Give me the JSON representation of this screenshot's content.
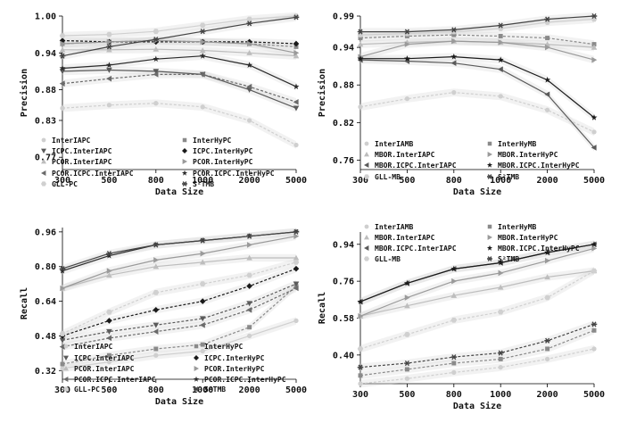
{
  "chart_data": [
    {
      "type": "line",
      "xlabel": "Data Size",
      "ylabel": "Precision",
      "x": [
        "300",
        "500",
        "800",
        "1000",
        "2000",
        "5000"
      ],
      "yticks": [
        "0.77",
        "0.83",
        "0.88",
        "0.94",
        "1.00"
      ],
      "ylim": [
        0.75,
        1.0
      ],
      "series": [
        {
          "name": "InterIAPC",
          "marker": "circle",
          "color": "#cfcfcf",
          "dash": "3,2",
          "values": [
            0.85,
            0.855,
            0.858,
            0.852,
            0.83,
            0.79
          ]
        },
        {
          "name": "InterHyPC",
          "marker": "square",
          "color": "#8a8a8a",
          "dash": "3,2",
          "values": [
            0.955,
            0.958,
            0.96,
            0.958,
            0.955,
            0.95
          ]
        },
        {
          "name": "ICPC.InterIAPC",
          "marker": "tri-down",
          "color": "#5a5a5a",
          "dash": "",
          "values": [
            0.91,
            0.912,
            0.91,
            0.905,
            0.88,
            0.85
          ]
        },
        {
          "name": "ICPC.InterHyPC",
          "marker": "diamond",
          "color": "#1a1a1a",
          "dash": "3,2",
          "values": [
            0.96,
            0.958,
            0.958,
            0.958,
            0.958,
            0.955
          ]
        },
        {
          "name": "PCOR.InterIAPC",
          "marker": "tri-up",
          "color": "#bdbdbd",
          "dash": "",
          "values": [
            0.945,
            0.945,
            0.946,
            0.944,
            0.94,
            0.935
          ]
        },
        {
          "name": "PCOR.InterHyPC",
          "marker": "tri-right",
          "color": "#9a9a9a",
          "dash": "",
          "values": [
            0.955,
            0.958,
            0.96,
            0.958,
            0.955,
            0.94
          ]
        },
        {
          "name": "PCOR.ICPC.InterIAPC",
          "marker": "tri-left",
          "color": "#6a6a6a",
          "dash": "3,2",
          "values": [
            0.89,
            0.898,
            0.905,
            0.905,
            0.885,
            0.86
          ]
        },
        {
          "name": "PCOR.ICPC.InterHyPC",
          "marker": "star",
          "color": "#2a2a2a",
          "dash": "",
          "values": [
            0.915,
            0.92,
            0.93,
            0.935,
            0.92,
            0.885
          ]
        },
        {
          "name": "GLL-PC",
          "marker": "hexagon",
          "color": "#d0d0d0",
          "dash": "",
          "values": [
            0.968,
            0.97,
            0.975,
            0.985,
            0.995,
            1.0
          ]
        },
        {
          "name": "S²TMB",
          "marker": "asterisk",
          "color": "#444444",
          "dash": "",
          "values": [
            0.935,
            0.95,
            0.962,
            0.975,
            0.988,
            0.998
          ]
        }
      ]
    },
    {
      "type": "line",
      "xlabel": "Data Size",
      "ylabel": "Precision",
      "x": [
        "300",
        "500",
        "800",
        "1000",
        "2000",
        "5000"
      ],
      "yticks": [
        "0.76",
        "0.82",
        "0.88",
        "0.94",
        "0.99"
      ],
      "ylim": [
        0.745,
        0.99
      ],
      "series": [
        {
          "name": "InterIAMB",
          "marker": "circle",
          "color": "#cfcfcf",
          "dash": "3,2",
          "values": [
            0.845,
            0.858,
            0.868,
            0.862,
            0.84,
            0.805
          ]
        },
        {
          "name": "InterHyMB",
          "marker": "square",
          "color": "#8a8a8a",
          "dash": "3,2",
          "values": [
            0.955,
            0.958,
            0.96,
            0.958,
            0.955,
            0.945
          ]
        },
        {
          "name": "MBOR.InterIAPC",
          "marker": "tri-up",
          "color": "#bdbdbd",
          "dash": "",
          "values": [
            0.945,
            0.948,
            0.95,
            0.948,
            0.945,
            0.94
          ]
        },
        {
          "name": "MBOR.InterHyPC",
          "marker": "tri-right",
          "color": "#9a9a9a",
          "dash": "",
          "values": [
            0.925,
            0.945,
            0.95,
            0.948,
            0.94,
            0.92
          ]
        },
        {
          "name": "MBOR.ICPC.InterIAPC",
          "marker": "tri-left",
          "color": "#5a5a5a",
          "dash": "",
          "values": [
            0.92,
            0.918,
            0.915,
            0.905,
            0.865,
            0.78
          ]
        },
        {
          "name": "MBOR.ICPC.InterHyPC",
          "marker": "star",
          "color": "#1a1a1a",
          "dash": "",
          "values": [
            0.922,
            0.922,
            0.925,
            0.92,
            0.888,
            0.828
          ]
        },
        {
          "name": "GLL-MB",
          "marker": "hexagon",
          "color": "#d0d0d0",
          "dash": "",
          "values": [
            0.96,
            0.962,
            0.965,
            0.97,
            0.98,
            0.985
          ]
        },
        {
          "name": "S²TMB",
          "marker": "asterisk",
          "color": "#444444",
          "dash": "",
          "values": [
            0.965,
            0.965,
            0.968,
            0.975,
            0.985,
            0.99
          ]
        }
      ]
    },
    {
      "type": "line",
      "xlabel": "Data Size",
      "ylabel": "Recall",
      "x": [
        "300",
        "500",
        "800",
        "1000",
        "2000",
        "5000"
      ],
      "yticks": [
        "0.32",
        "0.48",
        "0.64",
        "0.80",
        "0.96"
      ],
      "ylim": [
        0.28,
        0.98
      ],
      "series": [
        {
          "name": "InterIAPC",
          "marker": "circle",
          "color": "#cfcfcf",
          "dash": "",
          "values": [
            0.33,
            0.36,
            0.39,
            0.41,
            0.48,
            0.55
          ]
        },
        {
          "name": "InterHyPC",
          "marker": "square",
          "color": "#8a8a8a",
          "dash": "3,2",
          "values": [
            0.35,
            0.39,
            0.42,
            0.44,
            0.52,
            0.71
          ]
        },
        {
          "name": "ICPC.InterIAPC",
          "marker": "tri-down",
          "color": "#5a5a5a",
          "dash": "3,2",
          "values": [
            0.46,
            0.5,
            0.53,
            0.56,
            0.63,
            0.72
          ]
        },
        {
          "name": "ICPC.InterHyPC",
          "marker": "diamond",
          "color": "#1a1a1a",
          "dash": "3,2",
          "values": [
            0.48,
            0.55,
            0.6,
            0.64,
            0.71,
            0.79
          ]
        },
        {
          "name": "PCOR.InterIAPC",
          "marker": "tri-up",
          "color": "#bdbdbd",
          "dash": "",
          "values": [
            0.7,
            0.76,
            0.8,
            0.82,
            0.84,
            0.84
          ]
        },
        {
          "name": "PCOR.InterHyPC",
          "marker": "tri-right",
          "color": "#9a9a9a",
          "dash": "",
          "values": [
            0.7,
            0.78,
            0.83,
            0.86,
            0.9,
            0.94
          ]
        },
        {
          "name": "PCOR.ICPC.InterIAPC",
          "marker": "tri-left",
          "color": "#6a6a6a",
          "dash": "3,2",
          "values": [
            0.43,
            0.47,
            0.5,
            0.53,
            0.6,
            0.7
          ]
        },
        {
          "name": "PCOR.ICPC.InterHyPC",
          "marker": "star",
          "color": "#2a2a2a",
          "dash": "",
          "values": [
            0.78,
            0.85,
            0.9,
            0.92,
            0.94,
            0.96
          ]
        },
        {
          "name": "GLL-PC",
          "marker": "hexagon",
          "color": "#d0d0d0",
          "dash": "3,2",
          "values": [
            0.49,
            0.59,
            0.68,
            0.72,
            0.76,
            0.82
          ]
        },
        {
          "name": "S²TMB",
          "marker": "asterisk",
          "color": "#444444",
          "dash": "",
          "values": [
            0.79,
            0.86,
            0.9,
            0.92,
            0.94,
            0.96
          ]
        }
      ]
    },
    {
      "type": "line",
      "xlabel": "Data Size",
      "ylabel": "Recall",
      "x": [
        "300",
        "500",
        "800",
        "1000",
        "2000",
        "5000"
      ],
      "yticks": [
        "0.40",
        "0.58",
        "0.76",
        "0.94"
      ],
      "ylim": [
        0.26,
        1.0
      ],
      "series": [
        {
          "name": "InterIAMB",
          "marker": "circle",
          "color": "#cfcfcf",
          "dash": "3,2",
          "values": [
            0.26,
            0.285,
            0.315,
            0.34,
            0.38,
            0.43
          ]
        },
        {
          "name": "InterHyMB",
          "marker": "square",
          "color": "#8a8a8a",
          "dash": "3,2",
          "values": [
            0.3,
            0.33,
            0.36,
            0.38,
            0.43,
            0.52
          ]
        },
        {
          "name": "MBOR.InterIAPC",
          "marker": "tri-up",
          "color": "#bdbdbd",
          "dash": "",
          "values": [
            0.59,
            0.64,
            0.69,
            0.73,
            0.78,
            0.81
          ]
        },
        {
          "name": "MBOR.InterHyPC",
          "marker": "tri-right",
          "color": "#9a9a9a",
          "dash": "",
          "values": [
            0.59,
            0.68,
            0.76,
            0.8,
            0.86,
            0.92
          ]
        },
        {
          "name": "MBOR.ICPC.InterIAPC",
          "marker": "tri-left",
          "color": "#5a5a5a",
          "dash": "",
          "values": [
            0.66,
            0.75,
            0.82,
            0.85,
            0.9,
            0.94
          ]
        },
        {
          "name": "MBOR.ICPC.InterHyPC",
          "marker": "star",
          "color": "#1a1a1a",
          "dash": "",
          "values": [
            0.66,
            0.75,
            0.82,
            0.85,
            0.9,
            0.94
          ]
        },
        {
          "name": "GLL-MB",
          "marker": "hexagon",
          "color": "#d0d0d0",
          "dash": "3,2",
          "values": [
            0.43,
            0.5,
            0.57,
            0.61,
            0.68,
            0.81
          ]
        },
        {
          "name": "S²TMB",
          "marker": "asterisk",
          "color": "#444444",
          "dash": "3,2",
          "values": [
            0.34,
            0.36,
            0.39,
            0.41,
            0.47,
            0.55
          ]
        }
      ]
    }
  ]
}
